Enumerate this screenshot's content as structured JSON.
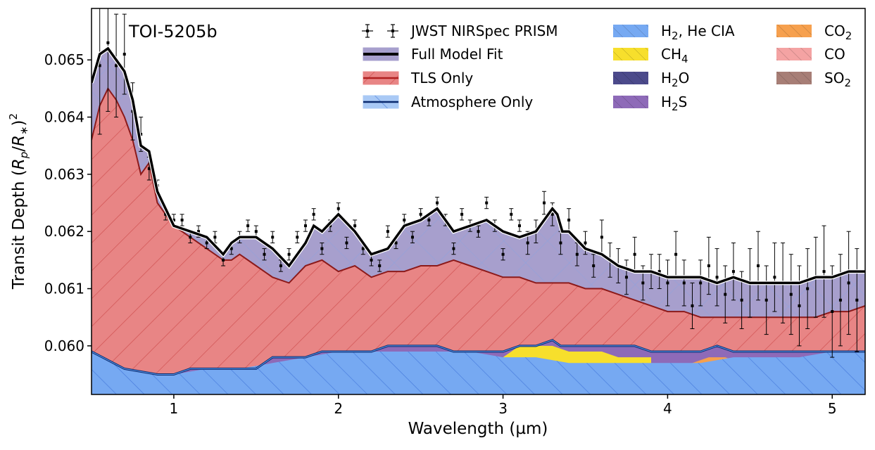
{
  "chart_data": {
    "type": "area",
    "title": "TOI-5205b",
    "xlabel": "Wavelength (µm)",
    "ylabel": "Transit Depth (R_p/R_*)^2",
    "xlim": [
      0.5,
      5.2
    ],
    "ylim": [
      0.05915,
      0.0659
    ],
    "x_ticks": [
      1,
      2,
      3,
      4,
      5
    ],
    "x_tick_labels": [
      "1",
      "2",
      "3",
      "4",
      "5"
    ],
    "y_ticks": [
      0.06,
      0.061,
      0.062,
      0.063,
      0.064,
      0.065
    ],
    "y_tick_labels": [
      "0.060",
      "0.061",
      "0.062",
      "0.063",
      "0.064",
      "0.065"
    ],
    "legend": [
      {
        "key": "obs",
        "label": "JWST NIRSpec PRISM",
        "sub": "",
        "tail": "",
        "color": "#000000",
        "style": "errorbar"
      },
      {
        "key": "full",
        "label": "Full Model Fit",
        "sub": "",
        "tail": "",
        "color": "#000000",
        "style": "line-fill",
        "fill": "#a79fcd"
      },
      {
        "key": "tls",
        "label": "TLS Only",
        "sub": "",
        "tail": "",
        "color": "#b02020",
        "style": "line-fill",
        "fill": "#e88585"
      },
      {
        "key": "atm",
        "label": "Atmosphere Only",
        "sub": "",
        "tail": "",
        "color": "#0a2a6e",
        "style": "line-fill",
        "fill": "#a9c9f5"
      },
      {
        "key": "h2he",
        "label": "H",
        "sub": "2",
        "tail": ", He CIA",
        "color": "#76a9f2",
        "style": "patch"
      },
      {
        "key": "ch4",
        "label": "CH",
        "sub": "4",
        "tail": "",
        "color": "#f7df2c",
        "style": "patch"
      },
      {
        "key": "h2o",
        "label": "H",
        "sub": "2",
        "tail": "O",
        "color": "#4c4a8b",
        "style": "patch"
      },
      {
        "key": "h2s",
        "label": "H",
        "sub": "2",
        "tail": "S",
        "color": "#8e6ab8",
        "style": "patch"
      },
      {
        "key": "co2",
        "label": "CO",
        "sub": "2",
        "tail": "",
        "color": "#f6a04e",
        "style": "patch"
      },
      {
        "key": "co",
        "label": "CO",
        "sub": "",
        "tail": "",
        "color": "#f4a3a3",
        "style": "patch"
      },
      {
        "key": "so2",
        "label": "SO",
        "sub": "2",
        "tail": "",
        "color": "#a77e76",
        "style": "patch"
      }
    ],
    "series": {
      "full": {
        "name": "Full Model Fit",
        "x": [
          0.5,
          0.55,
          0.6,
          0.65,
          0.7,
          0.75,
          0.8,
          0.85,
          0.9,
          1.0,
          1.1,
          1.2,
          1.3,
          1.35,
          1.4,
          1.5,
          1.6,
          1.7,
          1.8,
          1.85,
          1.9,
          2.0,
          2.1,
          2.2,
          2.3,
          2.4,
          2.5,
          2.6,
          2.7,
          2.8,
          2.9,
          3.0,
          3.1,
          3.2,
          3.3,
          3.33,
          3.36,
          3.4,
          3.5,
          3.6,
          3.7,
          3.8,
          3.9,
          4.0,
          4.1,
          4.2,
          4.3,
          4.4,
          4.5,
          4.6,
          4.7,
          4.8,
          4.9,
          5.0,
          5.1,
          5.2
        ],
        "y": [
          0.0646,
          0.0651,
          0.0652,
          0.065,
          0.0648,
          0.0643,
          0.0635,
          0.0634,
          0.0627,
          0.0621,
          0.062,
          0.0619,
          0.0616,
          0.0618,
          0.0619,
          0.0619,
          0.0617,
          0.0614,
          0.0618,
          0.0621,
          0.062,
          0.0623,
          0.062,
          0.0616,
          0.0617,
          0.0621,
          0.0622,
          0.0624,
          0.062,
          0.0621,
          0.0622,
          0.062,
          0.0619,
          0.062,
          0.0624,
          0.0623,
          0.062,
          0.062,
          0.0617,
          0.0616,
          0.0614,
          0.0613,
          0.0613,
          0.0612,
          0.0612,
          0.0612,
          0.0611,
          0.0612,
          0.0611,
          0.0611,
          0.0611,
          0.0611,
          0.0612,
          0.0612,
          0.0613,
          0.0613
        ]
      },
      "tls": {
        "name": "TLS Only",
        "x": [
          0.5,
          0.55,
          0.6,
          0.65,
          0.7,
          0.75,
          0.8,
          0.85,
          0.9,
          1.0,
          1.1,
          1.2,
          1.3,
          1.35,
          1.4,
          1.5,
          1.6,
          1.7,
          1.8,
          1.9,
          2.0,
          2.1,
          2.2,
          2.3,
          2.4,
          2.5,
          2.6,
          2.7,
          2.8,
          2.9,
          3.0,
          3.1,
          3.2,
          3.3,
          3.4,
          3.5,
          3.6,
          3.7,
          3.8,
          3.9,
          4.0,
          4.1,
          4.2,
          4.3,
          4.4,
          4.5,
          4.6,
          4.7,
          4.8,
          4.9,
          5.0,
          5.1,
          5.2
        ],
        "y": [
          0.0636,
          0.0642,
          0.0645,
          0.0643,
          0.064,
          0.0636,
          0.063,
          0.0632,
          0.0625,
          0.0621,
          0.0619,
          0.0617,
          0.0615,
          0.0615,
          0.0616,
          0.0614,
          0.0612,
          0.0611,
          0.0614,
          0.0615,
          0.0613,
          0.0614,
          0.0612,
          0.0613,
          0.0613,
          0.0614,
          0.0614,
          0.0615,
          0.0614,
          0.0613,
          0.0612,
          0.0612,
          0.0611,
          0.0611,
          0.0611,
          0.061,
          0.061,
          0.0609,
          0.0608,
          0.0607,
          0.0606,
          0.0606,
          0.0605,
          0.0605,
          0.0605,
          0.0605,
          0.0605,
          0.0605,
          0.0605,
          0.0605,
          0.0606,
          0.0606,
          0.0607
        ]
      },
      "atm": {
        "name": "Atmosphere Only",
        "x": [
          0.5,
          0.7,
          0.9,
          1.0,
          1.1,
          1.2,
          1.3,
          1.4,
          1.5,
          1.6,
          1.7,
          1.8,
          1.9,
          2.0,
          2.1,
          2.2,
          2.3,
          2.4,
          2.5,
          2.6,
          2.7,
          2.8,
          2.9,
          3.0,
          3.1,
          3.2,
          3.3,
          3.35,
          3.4,
          3.5,
          3.6,
          3.7,
          3.8,
          3.9,
          4.0,
          4.1,
          4.2,
          4.3,
          4.4,
          4.5,
          4.6,
          4.7,
          4.8,
          4.9,
          5.0,
          5.1,
          5.2
        ],
        "y": [
          0.0599,
          0.0596,
          0.0595,
          0.0595,
          0.0596,
          0.0596,
          0.0596,
          0.0596,
          0.0596,
          0.0598,
          0.0598,
          0.0598,
          0.0599,
          0.0599,
          0.0599,
          0.0599,
          0.06,
          0.06,
          0.06,
          0.06,
          0.0599,
          0.0599,
          0.0599,
          0.0599,
          0.06,
          0.06,
          0.0601,
          0.06,
          0.06,
          0.06,
          0.06,
          0.06,
          0.06,
          0.0599,
          0.0599,
          0.0599,
          0.0599,
          0.06,
          0.0599,
          0.0599,
          0.0599,
          0.0599,
          0.0599,
          0.0599,
          0.0599,
          0.0599,
          0.0599
        ]
      },
      "h2he": {
        "name": "H2, He CIA",
        "x": [
          0.5,
          0.7,
          0.9,
          1.0,
          1.2,
          1.4,
          1.6,
          1.8,
          2.0,
          2.2,
          2.4,
          2.6,
          2.8,
          3.0,
          3.2,
          3.4,
          3.6,
          3.8,
          4.0,
          4.2,
          4.4,
          4.6,
          4.8,
          5.0,
          5.2
        ],
        "y": [
          0.0599,
          0.0596,
          0.0595,
          0.0595,
          0.0596,
          0.0596,
          0.0597,
          0.0598,
          0.0599,
          0.0599,
          0.0599,
          0.0599,
          0.0599,
          0.0598,
          0.0598,
          0.0597,
          0.0597,
          0.0597,
          0.0597,
          0.0597,
          0.0598,
          0.0598,
          0.0598,
          0.0599,
          0.0599
        ]
      },
      "ch4": {
        "name": "CH4",
        "x": [
          3.0,
          3.1,
          3.2,
          3.3,
          3.4,
          3.5,
          3.6,
          3.7,
          3.8,
          3.9
        ],
        "y": [
          0.0598,
          0.06,
          0.06,
          0.06,
          0.0599,
          0.0599,
          0.0599,
          0.0598,
          0.0598,
          0.0598
        ]
      },
      "h2s": {
        "name": "H2S",
        "x": [
          3.4,
          3.6,
          3.8,
          4.0,
          4.2,
          4.4
        ],
        "y": [
          0.0597,
          0.0598,
          0.0598,
          0.0598,
          0.0598,
          0.0598
        ]
      },
      "co2": {
        "name": "CO2",
        "x": [
          4.15,
          4.25,
          4.35,
          4.45
        ],
        "y": [
          0.0597,
          0.0598,
          0.0598,
          0.0597
        ]
      },
      "obs": {
        "name": "JWST NIRSpec PRISM",
        "x": [
          0.55,
          0.6,
          0.65,
          0.7,
          0.75,
          0.8,
          0.85,
          0.9,
          0.95,
          1.0,
          1.05,
          1.1,
          1.15,
          1.2,
          1.25,
          1.3,
          1.35,
          1.4,
          1.45,
          1.5,
          1.55,
          1.6,
          1.65,
          1.7,
          1.75,
          1.8,
          1.85,
          1.9,
          1.95,
          2.0,
          2.05,
          2.1,
          2.15,
          2.2,
          2.25,
          2.3,
          2.35,
          2.4,
          2.45,
          2.5,
          2.55,
          2.6,
          2.65,
          2.7,
          2.75,
          2.8,
          2.85,
          2.9,
          2.95,
          3.0,
          3.05,
          3.1,
          3.15,
          3.2,
          3.25,
          3.3,
          3.35,
          3.4,
          3.45,
          3.5,
          3.55,
          3.6,
          3.65,
          3.7,
          3.75,
          3.8,
          3.85,
          3.9,
          3.95,
          4.0,
          4.05,
          4.1,
          4.15,
          4.2,
          4.25,
          4.3,
          4.35,
          4.4,
          4.45,
          4.5,
          4.55,
          4.6,
          4.65,
          4.7,
          4.75,
          4.8,
          4.85,
          4.9,
          4.95,
          5.0,
          5.05,
          5.1,
          5.15
        ],
        "y": [
          0.0649,
          0.0653,
          0.0649,
          0.0651,
          0.0641,
          0.0637,
          0.0631,
          0.0628,
          0.0623,
          0.0622,
          0.0622,
          0.0619,
          0.062,
          0.0618,
          0.0619,
          0.0615,
          0.0617,
          0.0619,
          0.0621,
          0.062,
          0.0616,
          0.0619,
          0.0614,
          0.0616,
          0.0619,
          0.0621,
          0.0623,
          0.0617,
          0.0621,
          0.0624,
          0.0618,
          0.0621,
          0.0617,
          0.0615,
          0.0614,
          0.062,
          0.0618,
          0.0622,
          0.0619,
          0.0623,
          0.0622,
          0.0625,
          0.0622,
          0.0617,
          0.0623,
          0.0621,
          0.062,
          0.0625,
          0.0621,
          0.0616,
          0.0623,
          0.0621,
          0.0618,
          0.062,
          0.0625,
          0.0623,
          0.0618,
          0.0622,
          0.0616,
          0.0618,
          0.0614,
          0.0619,
          0.0615,
          0.0614,
          0.0612,
          0.0616,
          0.0611,
          0.0613,
          0.0613,
          0.0611,
          0.0616,
          0.0611,
          0.0607,
          0.0611,
          0.0614,
          0.0612,
          0.0609,
          0.0613,
          0.0608,
          0.0611,
          0.0614,
          0.0608,
          0.0612,
          0.0611,
          0.0609,
          0.0607,
          0.061,
          0.0612,
          0.0613,
          0.0606,
          0.0608,
          0.0611,
          0.0608
        ],
        "err": [
          0.0012,
          0.0012,
          0.0009,
          0.0007,
          0.0005,
          0.0003,
          0.0002,
          0.0001,
          0.0001,
          0.0001,
          0.0001,
          0.0001,
          0.0001,
          0.0001,
          0.0001,
          0.0001,
          0.0001,
          0.0001,
          0.0001,
          0.0001,
          0.0001,
          0.0001,
          0.0001,
          0.0001,
          0.0001,
          0.0001,
          0.0001,
          0.0001,
          0.0001,
          0.0001,
          0.0001,
          0.0001,
          0.0001,
          0.0001,
          0.0001,
          0.0001,
          0.0001,
          0.0001,
          0.0001,
          0.0001,
          0.0001,
          0.0001,
          0.0001,
          0.0001,
          0.0001,
          0.0001,
          0.0001,
          0.0001,
          0.0001,
          0.0001,
          0.0001,
          0.0001,
          0.0002,
          0.0002,
          0.0002,
          0.0002,
          0.0002,
          0.0002,
          0.0002,
          0.0002,
          0.0002,
          0.0003,
          0.0003,
          0.0003,
          0.0003,
          0.0003,
          0.0003,
          0.0003,
          0.0003,
          0.0004,
          0.0004,
          0.0004,
          0.0004,
          0.0004,
          0.0005,
          0.0005,
          0.0005,
          0.0005,
          0.0005,
          0.0006,
          0.0006,
          0.0006,
          0.0006,
          0.0007,
          0.0007,
          0.0007,
          0.0007,
          0.0007,
          0.0008,
          0.0008,
          0.0008,
          0.0009,
          0.0009
        ]
      }
    }
  }
}
